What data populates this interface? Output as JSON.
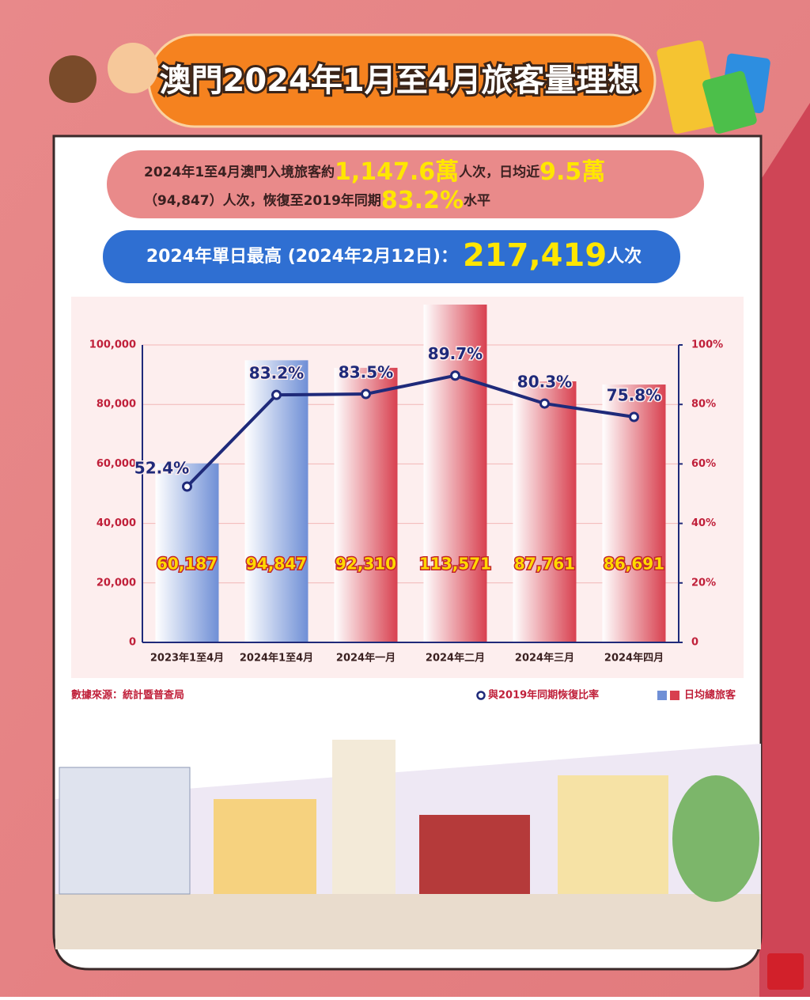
{
  "header": {
    "title": "澳門2024年1月至4月旅客量理想"
  },
  "summary": {
    "lines": [
      [
        {
          "text": "2024年1至4月澳門入境旅客約",
          "emphasis": false
        },
        {
          "text": "1,147.6萬",
          "emphasis": true
        },
        {
          "text": "人次，日均近",
          "emphasis": false
        },
        {
          "text": "9.5萬",
          "emphasis": true
        }
      ],
      [
        {
          "text": "（94,847）人次，恢復至2019年同期",
          "emphasis": false
        },
        {
          "text": "83.2%",
          "emphasis": true
        },
        {
          "text": "水平",
          "emphasis": false
        }
      ]
    ]
  },
  "peak": {
    "label": "2024年單日最高 (2024年2月12日)：",
    "value": "217,419",
    "unit": "人次"
  },
  "chart_data": {
    "type": "bar",
    "categories": [
      "2023年1至4月",
      "2024年1至4月",
      "2024年一月",
      "2024年二月",
      "2024年三月",
      "2024年四月"
    ],
    "series": [
      {
        "name": "日均總旅客",
        "type": "bar",
        "colors": [
          "#6f8fd6",
          "#6f8fd6",
          "#d8404f",
          "#d8404f",
          "#d8404f",
          "#d8404f"
        ],
        "values": [
          60187,
          94847,
          92310,
          113571,
          87761,
          86691
        ],
        "value_labels": [
          "60,187",
          "94,847",
          "92,310",
          "113,571",
          "87,761",
          "86,691"
        ]
      },
      {
        "name": "與2019年同期恢復比率",
        "type": "line",
        "axis": "y2",
        "color": "#1f2a7a",
        "values": [
          52.4,
          83.2,
          83.5,
          89.7,
          80.3,
          75.8
        ],
        "value_labels": [
          "52.4%",
          "83.2%",
          "83.5%",
          "89.7%",
          "80.3%",
          "75.8%"
        ]
      }
    ],
    "ylim": [
      0,
      100000
    ],
    "yticks": [
      0,
      {
        "value": 20000,
        "label": "20,000"
      },
      {
        "value": 40000,
        "label": "40,000"
      },
      {
        "value": 60000,
        "label": "60,000"
      },
      {
        "value": 80000,
        "label": "80,000"
      },
      {
        "value": 100000,
        "label": "100,000"
      }
    ],
    "y2lim": [
      0,
      100
    ],
    "y2ticks": [
      0,
      {
        "value": 20,
        "label": "20%"
      },
      {
        "value": 40,
        "label": "40%"
      },
      {
        "value": 60,
        "label": "60%"
      },
      {
        "value": 80,
        "label": "80%"
      },
      {
        "value": 100,
        "label": "100%"
      }
    ],
    "grid": true,
    "source": "數據來源：統計暨普查局"
  }
}
